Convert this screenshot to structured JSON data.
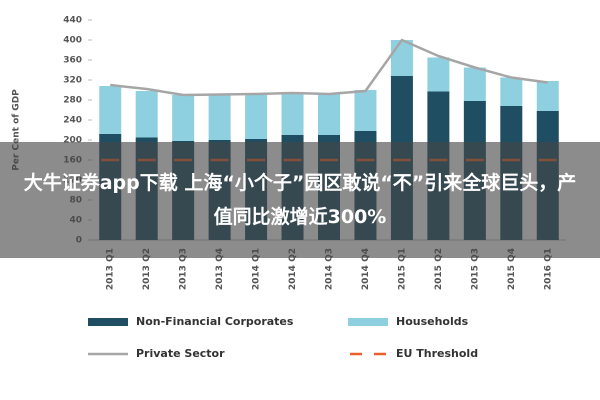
{
  "chart_data": {
    "type": "bar",
    "stacked": true,
    "y_axis_label": "Per Cent of GDP",
    "categories": [
      "2013 Q1",
      "2013 Q2",
      "2013 Q3",
      "2013 Q4",
      "2014 Q1",
      "2014 Q2",
      "2014 Q3",
      "2014 Q4",
      "2015 Q1",
      "2015 Q2",
      "2015 Q3",
      "2015 Q4",
      "2016 Q1"
    ],
    "series": [
      {
        "name": "Non-Financial Corporates",
        "type": "bar",
        "color": "#1f4e63",
        "values": [
          212,
          205,
          198,
          200,
          202,
          210,
          210,
          218,
          328,
          297,
          278,
          268,
          258
        ]
      },
      {
        "name": "Households",
        "type": "bar",
        "color": "#8fd0e0",
        "values": [
          96,
          93,
          92,
          92,
          90,
          83,
          82,
          82,
          72,
          68,
          67,
          57,
          60
        ]
      },
      {
        "name": "Private Sector",
        "type": "line",
        "color": "#a6a6a6",
        "values": [
          310,
          302,
          290,
          291,
          292,
          294,
          292,
          298,
          400,
          368,
          345,
          325,
          315
        ]
      },
      {
        "name": "EU Threshold",
        "type": "dash",
        "color": "#e8612c",
        "values": [
          160,
          160,
          160,
          160,
          160,
          160,
          160,
          160,
          160,
          160,
          160,
          160,
          160
        ]
      }
    ],
    "ylim": [
      0,
      440
    ],
    "yticks": [
      0,
      40,
      80,
      120,
      160,
      200,
      240,
      280,
      320,
      360,
      400,
      440
    ],
    "grid": false
  },
  "overlay_text": "大牛证券app下载 上海“小个子”园区敢说“不”引来全球巨头，产值同比激增近300%"
}
